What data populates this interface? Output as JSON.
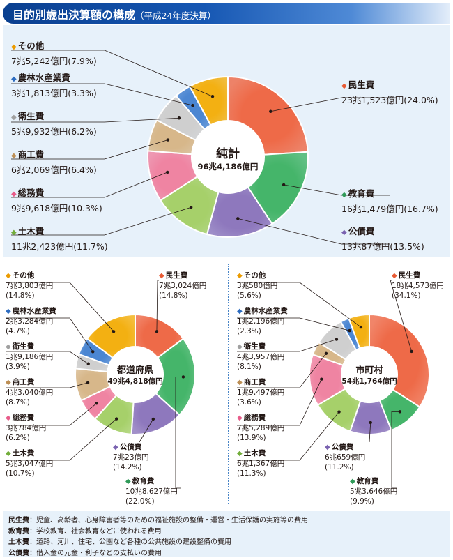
{
  "title": "目的別歳出決算額の構成",
  "subtitle": "（平成24年度決算）",
  "colors": {
    "minsei": "#ee6a48",
    "kyoiku": "#45b56a",
    "kosai": "#8e78bd",
    "doboku": "#a6d06a",
    "somu": "#ef84a2",
    "shoko": "#d7b78a",
    "eisei": "#cfcfcf",
    "norin": "#4b86d2",
    "sonota": "#f3b012",
    "diamond_minsei": "#e85a33",
    "diamond_kyoiku": "#2f9a58",
    "diamond_kosai": "#7a62b0",
    "diamond_doboku": "#72ad3a",
    "diamond_somu": "#e85c8a",
    "diamond_shoko": "#bd8f55",
    "diamond_eisei": "#a0a0a0",
    "diamond_norin": "#2d6cc0",
    "diamond_sonota": "#eb9b00"
  },
  "chart_data": [
    {
      "type": "pie",
      "name": "純計",
      "total": "96兆4,186億円",
      "categories": [
        "民生費",
        "教育費",
        "公債費",
        "土木費",
        "総務費",
        "商工費",
        "衛生費",
        "農林水産業費",
        "その他"
      ],
      "values": [
        24.0,
        16.7,
        13.5,
        11.7,
        10.3,
        6.4,
        6.2,
        3.3,
        7.9
      ],
      "amounts": [
        "23兆1,523億円",
        "16兆1,479億円",
        "13兆87億円",
        "11兆2,423億円",
        "9兆9,618億円",
        "6兆2,069億円",
        "5兆9,932億円",
        "3兆1,813億円",
        "7兆5,242億円"
      ],
      "percent_labels": [
        "(24.0%)",
        "(16.7%)",
        "(13.5%)",
        "(11.7%)",
        "(10.3%)",
        "(6.4%)",
        "(6.2%)",
        "(3.3%)",
        "(7.9%)"
      ]
    },
    {
      "type": "pie",
      "name": "都道府県",
      "total": "49兆4,818億円",
      "categories": [
        "民生費",
        "教育費",
        "公債費",
        "土木費",
        "総務費",
        "商工費",
        "衛生費",
        "農林水産業費",
        "その他"
      ],
      "values": [
        14.8,
        22.0,
        14.2,
        10.7,
        6.2,
        8.7,
        3.9,
        4.7,
        14.8
      ],
      "amounts": [
        "7兆3,024億円",
        "10兆8,627億円",
        "7兆23億円",
        "5兆3,047億円",
        "3兆784億円",
        "4兆3,040億円",
        "1兆9,186億円",
        "2兆3,284億円",
        "7兆3,803億円"
      ],
      "percent_labels": [
        "(14.8%)",
        "(22.0%)",
        "(14.2%)",
        "(10.7%)",
        "(6.2%)",
        "(8.7%)",
        "(3.9%)",
        "(4.7%)",
        "(14.8%)"
      ]
    },
    {
      "type": "pie",
      "name": "市町村",
      "total": "54兆1,764億円",
      "categories": [
        "民生費",
        "教育費",
        "公債費",
        "土木費",
        "総務費",
        "商工費",
        "衛生費",
        "農林水産業費",
        "その他"
      ],
      "values": [
        34.1,
        9.9,
        11.2,
        11.3,
        13.9,
        3.6,
        8.1,
        2.3,
        5.6
      ],
      "amounts": [
        "18兆4,573億円",
        "5兆3,646億円",
        "6兆659億円",
        "6兆1,367億円",
        "7兆5,289億円",
        "1兆9,497億円",
        "4兆3,957億円",
        "1兆2,196億円",
        "3兆580億円"
      ],
      "percent_labels": [
        "(34.1%)",
        "(9.9%)",
        "(11.2%)",
        "(11.3%)",
        "(13.9%)",
        "(3.6%)",
        "(8.1%)",
        "(2.3%)",
        "(5.6%)"
      ]
    }
  ],
  "legend_notes": [
    {
      "key": "民生費",
      "sep": "：",
      "text": "児童、高齢者、心身障害者等のための福祉施設の整備・運営・生活保護の実施等の費用"
    },
    {
      "key": "教育費",
      "sep": "：",
      "text": "学校教育、社会教育などに使われる費用"
    },
    {
      "key": "土木費",
      "sep": "：",
      "text": "道路、河川、住宅、公園など各種の公共施設の建設整備の費用"
    },
    {
      "key": "公債費",
      "sep": "：",
      "text": "借入金の元金・利子などの支払いの費用"
    }
  ],
  "diamond_glyph": "◆"
}
